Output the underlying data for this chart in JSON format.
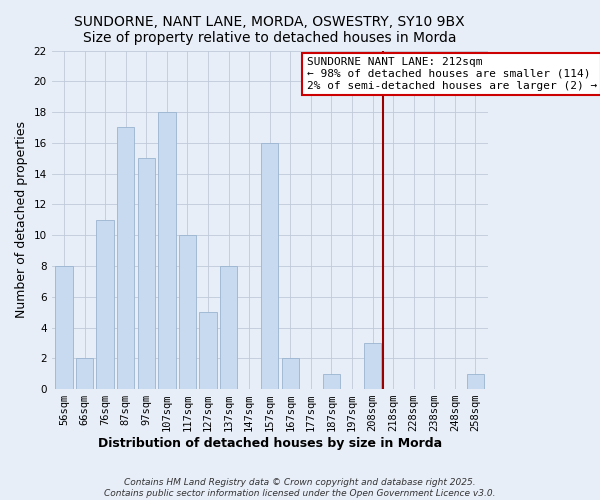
{
  "title": "SUNDORNE, NANT LANE, MORDA, OSWESTRY, SY10 9BX",
  "subtitle": "Size of property relative to detached houses in Morda",
  "xlabel": "Distribution of detached houses by size in Morda",
  "ylabel": "Number of detached properties",
  "categories": [
    "56sqm",
    "66sqm",
    "76sqm",
    "87sqm",
    "97sqm",
    "107sqm",
    "117sqm",
    "127sqm",
    "137sqm",
    "147sqm",
    "157sqm",
    "167sqm",
    "177sqm",
    "187sqm",
    "197sqm",
    "208sqm",
    "218sqm",
    "228sqm",
    "238sqm",
    "248sqm",
    "258sqm"
  ],
  "values": [
    8,
    2,
    11,
    17,
    15,
    18,
    10,
    5,
    8,
    0,
    16,
    2,
    0,
    1,
    0,
    3,
    0,
    0,
    0,
    0,
    1
  ],
  "bar_color": "#c8daf0",
  "bar_edge_color": "#9ab4d0",
  "vline_index": 15.5,
  "vline_color": "#990000",
  "annotation_title": "SUNDORNE NANT LANE: 212sqm",
  "annotation_line1": "← 98% of detached houses are smaller (114)",
  "annotation_line2": "2% of semi-detached houses are larger (2) →",
  "annotation_box_edge_color": "#cc0000",
  "ylim": [
    0,
    22
  ],
  "yticks": [
    0,
    2,
    4,
    6,
    8,
    10,
    12,
    14,
    16,
    18,
    20,
    22
  ],
  "footer1": "Contains HM Land Registry data © Crown copyright and database right 2025.",
  "footer2": "Contains public sector information licensed under the Open Government Licence v3.0.",
  "background_color": "#e8eef8",
  "plot_bg_color": "#e8eef8",
  "grid_color": "#c0cad8",
  "title_fontsize": 10,
  "axis_label_fontsize": 9,
  "tick_fontsize": 7.5,
  "annot_fontsize": 8,
  "footer_fontsize": 6.5
}
